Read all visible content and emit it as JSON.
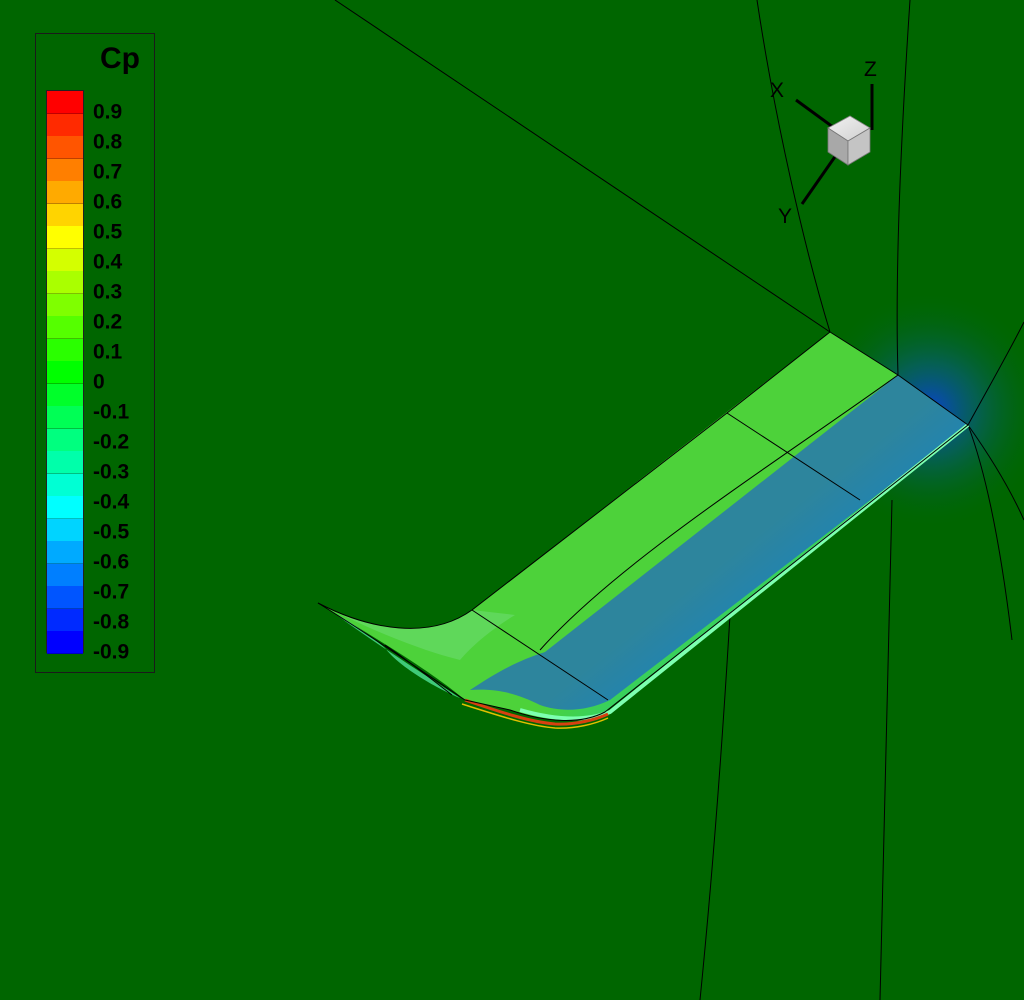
{
  "legend": {
    "title": "Cp",
    "levels": [
      "0.9",
      "0.8",
      "0.7",
      "0.6",
      "0.5",
      "0.4",
      "0.3",
      "0.2",
      "0.1",
      "0",
      "-0.1",
      "-0.2",
      "-0.3",
      "-0.4",
      "-0.5",
      "-0.6",
      "-0.7",
      "-0.8",
      "-0.9"
    ],
    "colors": [
      "#ff0000",
      "#ff2a00",
      "#ff5500",
      "#ff7f00",
      "#ffaa00",
      "#ffd400",
      "#ffff00",
      "#d4ff00",
      "#aaff00",
      "#7fff00",
      "#55ff00",
      "#2aff00",
      "#00ff00",
      "#00ff2a",
      "#00ff55",
      "#00ff7f",
      "#00ffaa",
      "#00ffd4",
      "#00ffff",
      "#00d4ff",
      "#00aaff",
      "#007fff",
      "#0055ff",
      "#002aff",
      "#0000ff"
    ]
  },
  "axes": {
    "x_label": "X",
    "y_label": "Y",
    "z_label": "Z"
  },
  "colors": {
    "background": "#006600",
    "wing_upper": "#44cc33",
    "wing_suction": "#1a3cf0"
  }
}
